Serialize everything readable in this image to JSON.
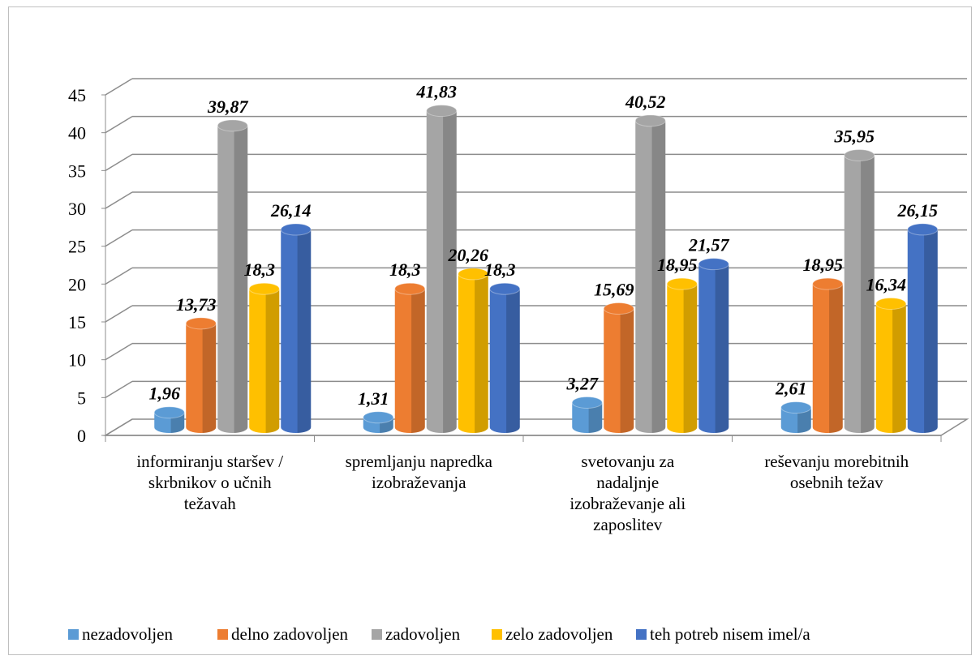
{
  "chart_data": {
    "type": "bar",
    "title": "",
    "xlabel": "",
    "ylabel": "",
    "ylim": [
      0,
      45
    ],
    "yticks": [
      0,
      5,
      10,
      15,
      20,
      25,
      30,
      35,
      40,
      45
    ],
    "grid": true,
    "legend_position": "bottom",
    "categories": [
      [
        "informiranju staršev /",
        "skrbnikov o učnih",
        "težavah"
      ],
      [
        "spremljanju napredka",
        "izobraževanja"
      ],
      [
        "svetovanju za",
        "nadaljnje",
        "izobraževanje ali",
        "zaposlitev"
      ],
      [
        "reševanju morebitnih",
        "osebnih težav"
      ]
    ],
    "series": [
      {
        "name": "nezadovoljen",
        "color": "#5b9bd5",
        "values": [
          1.96,
          1.31,
          3.27,
          2.61
        ],
        "labels": [
          "1,96",
          "1,31",
          "3,27",
          "2,61"
        ]
      },
      {
        "name": "delno zadovoljen",
        "color": "#ed7d31",
        "values": [
          13.73,
          18.3,
          15.69,
          18.95
        ],
        "labels": [
          "13,73",
          "18,3",
          "15,69",
          "18,95"
        ]
      },
      {
        "name": "zadovoljen",
        "color": "#a5a5a5",
        "values": [
          39.87,
          41.83,
          40.52,
          35.95
        ],
        "labels": [
          "39,87",
          "41,83",
          "40,52",
          "35,95"
        ]
      },
      {
        "name": "zelo zadovoljen",
        "color": "#ffc000",
        "values": [
          18.3,
          20.26,
          18.95,
          16.34
        ],
        "labels": [
          "18,3",
          "20,26",
          "18,95",
          "16,34"
        ]
      },
      {
        "name": "teh potreb nisem imel/a",
        "color": "#4472c4",
        "values": [
          26.14,
          18.3,
          21.57,
          26.15
        ],
        "labels": [
          "26,14",
          "18,3",
          "21,57",
          "26,15"
        ]
      }
    ]
  }
}
